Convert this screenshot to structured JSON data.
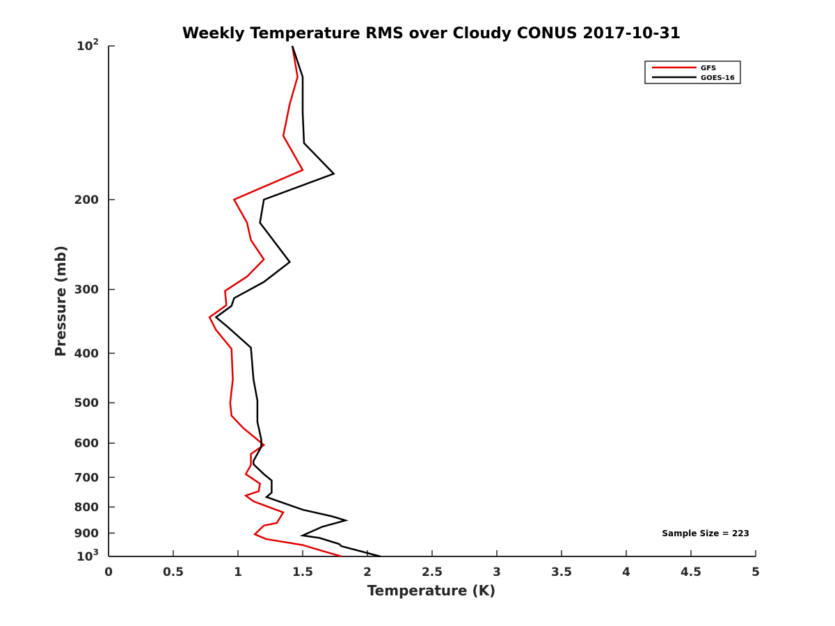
{
  "chart_data": {
    "type": "line",
    "title": "Weekly Temperature RMS over Cloudy CONUS 2017-10-31",
    "xlabel": "Temperature (K)",
    "ylabel": "Pressure (mb)",
    "xlim": [
      0,
      5
    ],
    "ylim": [
      100,
      1000
    ],
    "y_scale": "log",
    "y_reversed": true,
    "grid": false,
    "legend_position": "top-right",
    "x_ticks": [
      "0",
      "0.5",
      "1",
      "1.5",
      "2",
      "2.5",
      "3",
      "3.5",
      "4",
      "4.5",
      "5"
    ],
    "x_tick_values": [
      0,
      0.5,
      1,
      1.5,
      2,
      2.5,
      3,
      3.5,
      4,
      4.5,
      5
    ],
    "y_ticks": [
      {
        "value": 100,
        "base": "10",
        "exp": "2"
      },
      {
        "value": 200,
        "label": "200"
      },
      {
        "value": 300,
        "label": "300"
      },
      {
        "value": 400,
        "label": "400"
      },
      {
        "value": 500,
        "label": "500"
      },
      {
        "value": 600,
        "label": "600"
      },
      {
        "value": 700,
        "label": "700"
      },
      {
        "value": 800,
        "label": "800"
      },
      {
        "value": 900,
        "label": "900"
      },
      {
        "value": 1000,
        "base": "10",
        "exp": "3"
      }
    ],
    "annotation": "Sample Size = 223",
    "series": [
      {
        "name": "GFS",
        "color": "#e00000",
        "points": [
          [
            1.42,
            100
          ],
          [
            1.46,
            115
          ],
          [
            1.4,
            130
          ],
          [
            1.35,
            150
          ],
          [
            1.5,
            175
          ],
          [
            0.97,
            200
          ],
          [
            1.07,
            222
          ],
          [
            1.1,
            240
          ],
          [
            1.2,
            262
          ],
          [
            1.07,
            283
          ],
          [
            0.9,
            302
          ],
          [
            0.91,
            322
          ],
          [
            0.78,
            340
          ],
          [
            0.83,
            360
          ],
          [
            0.95,
            392
          ],
          [
            0.96,
            450
          ],
          [
            0.94,
            500
          ],
          [
            0.95,
            530
          ],
          [
            1.04,
            560
          ],
          [
            1.2,
            605
          ],
          [
            1.1,
            630
          ],
          [
            1.1,
            662
          ],
          [
            1.06,
            690
          ],
          [
            1.17,
            720
          ],
          [
            1.16,
            745
          ],
          [
            1.06,
            760
          ],
          [
            1.12,
            780
          ],
          [
            1.35,
            820
          ],
          [
            1.3,
            860
          ],
          [
            1.2,
            870
          ],
          [
            1.13,
            905
          ],
          [
            1.22,
            925
          ],
          [
            1.5,
            950
          ],
          [
            1.65,
            975
          ],
          [
            1.8,
            1000
          ]
        ]
      },
      {
        "name": "GOES-16",
        "color": "#000000",
        "points": [
          [
            1.42,
            100
          ],
          [
            1.5,
            115
          ],
          [
            1.5,
            135
          ],
          [
            1.51,
            155
          ],
          [
            1.74,
            178
          ],
          [
            1.2,
            200
          ],
          [
            1.17,
            222
          ],
          [
            1.4,
            265
          ],
          [
            1.2,
            290
          ],
          [
            0.97,
            312
          ],
          [
            0.95,
            323
          ],
          [
            0.83,
            340
          ],
          [
            0.92,
            355
          ],
          [
            1.1,
            390
          ],
          [
            1.12,
            450
          ],
          [
            1.15,
            495
          ],
          [
            1.15,
            545
          ],
          [
            1.18,
            590
          ],
          [
            1.18,
            610
          ],
          [
            1.12,
            650
          ],
          [
            1.12,
            660
          ],
          [
            1.2,
            690
          ],
          [
            1.26,
            710
          ],
          [
            1.26,
            750
          ],
          [
            1.22,
            765
          ],
          [
            1.5,
            810
          ],
          [
            1.73,
            835
          ],
          [
            1.83,
            850
          ],
          [
            1.65,
            875
          ],
          [
            1.5,
            910
          ],
          [
            1.63,
            920
          ],
          [
            1.78,
            945
          ],
          [
            1.8,
            955
          ],
          [
            2.1,
            1000
          ]
        ]
      }
    ]
  }
}
